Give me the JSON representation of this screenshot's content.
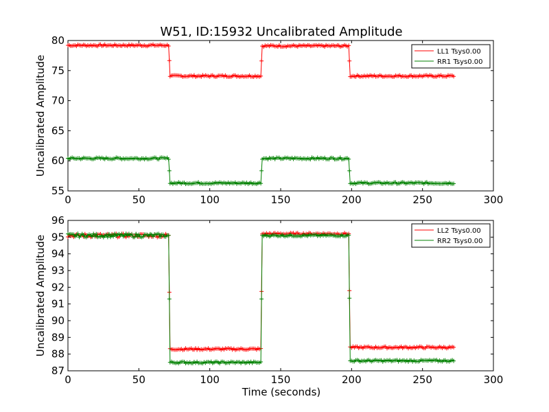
{
  "chart_data": [
    {
      "type": "line",
      "title": "W51, ID:15932 Uncalibrated Amplitude",
      "xlabel": "",
      "ylabel": "Uncalibrated Amplitude",
      "xlim": [
        0,
        300
      ],
      "ylim": [
        55,
        80
      ],
      "x_ticks": [
        "0",
        "50",
        "100",
        "150",
        "200",
        "250",
        "300"
      ],
      "y_ticks": [
        "55",
        "60",
        "65",
        "70",
        "75",
        "80"
      ],
      "legend_position": "top-right",
      "grid": false,
      "series": [
        {
          "name": "LL1 Tsys0.00",
          "color": "#ff0000",
          "marker": "plus",
          "segments": [
            {
              "x_start": 0,
              "x_end": 71,
              "level": 79.2
            },
            {
              "x_start": 72,
              "x_end": 136,
              "level": 74.1
            },
            {
              "x_start": 137,
              "x_end": 198,
              "level": 79.1
            },
            {
              "x_start": 199,
              "x_end": 272,
              "level": 74.1
            }
          ]
        },
        {
          "name": "RR1 Tsys0.00",
          "color": "#008000",
          "marker": "plus",
          "segments": [
            {
              "x_start": 0,
              "x_end": 71,
              "level": 60.4
            },
            {
              "x_start": 72,
              "x_end": 136,
              "level": 56.3
            },
            {
              "x_start": 137,
              "x_end": 198,
              "level": 60.4
            },
            {
              "x_start": 199,
              "x_end": 272,
              "level": 56.3
            }
          ]
        }
      ]
    },
    {
      "type": "line",
      "title": "",
      "xlabel": "Time (seconds)",
      "ylabel": "Uncalibrated Amplitude",
      "xlim": [
        0,
        300
      ],
      "ylim": [
        87,
        96
      ],
      "x_ticks": [
        "0",
        "50",
        "100",
        "150",
        "200",
        "250",
        "300"
      ],
      "y_ticks": [
        "87",
        "88",
        "89",
        "90",
        "91",
        "92",
        "93",
        "94",
        "95",
        "96"
      ],
      "legend_position": "top-right",
      "grid": false,
      "series": [
        {
          "name": "LL2 Tsys0.00",
          "color": "#ff0000",
          "marker": "plus",
          "segments": [
            {
              "x_start": 0,
              "x_end": 71,
              "level": 95.1
            },
            {
              "x_start": 72,
              "x_end": 136,
              "level": 88.3
            },
            {
              "x_start": 137,
              "x_end": 198,
              "level": 95.2
            },
            {
              "x_start": 199,
              "x_end": 272,
              "level": 88.4
            }
          ]
        },
        {
          "name": "RR2 Tsys0.00",
          "color": "#008000",
          "marker": "plus",
          "segments": [
            {
              "x_start": 0,
              "x_end": 71,
              "level": 95.1
            },
            {
              "x_start": 72,
              "x_end": 136,
              "level": 87.5
            },
            {
              "x_start": 137,
              "x_end": 198,
              "level": 95.1
            },
            {
              "x_start": 199,
              "x_end": 272,
              "level": 87.6
            }
          ]
        }
      ]
    }
  ]
}
